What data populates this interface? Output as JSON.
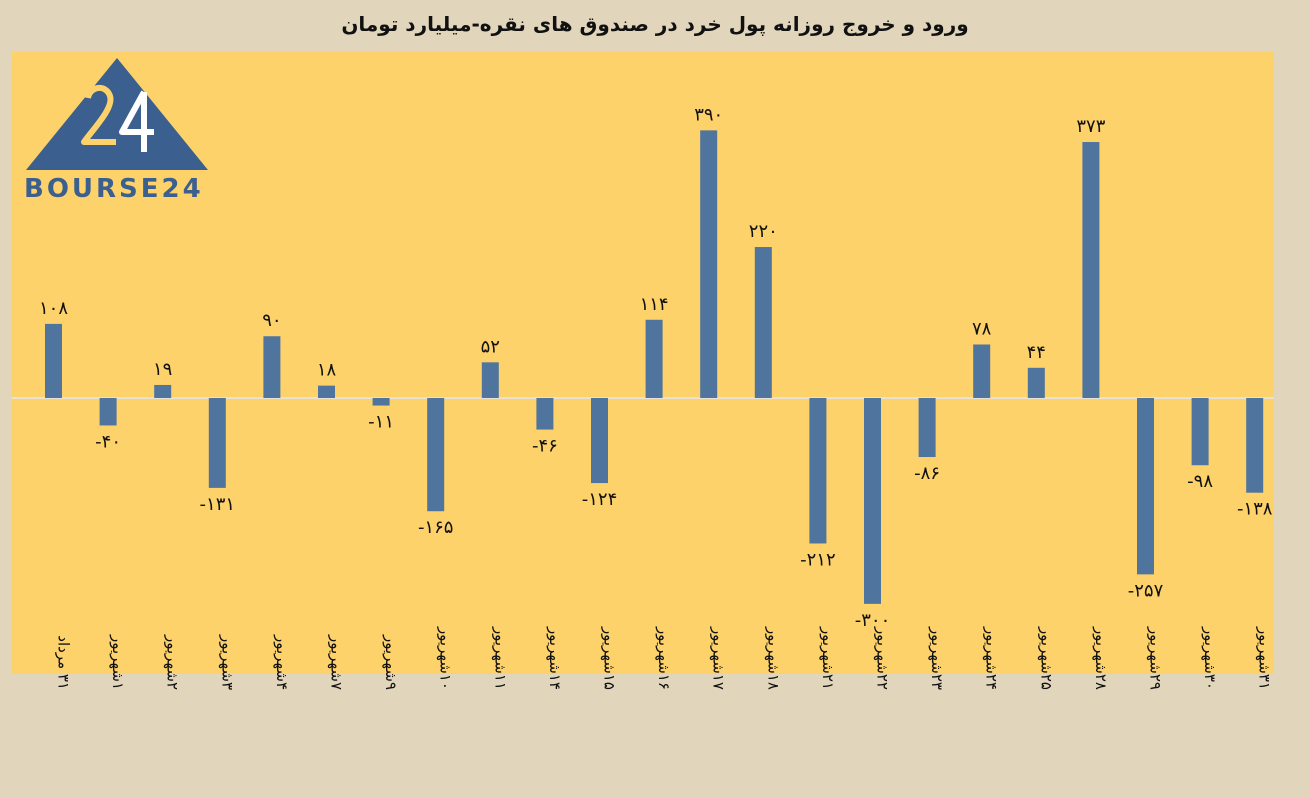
{
  "chart_data": {
    "type": "bar",
    "title": "ورود و خروج روزانه پول خرد در صندوق های نقره-میلیارد تومان",
    "categories": [
      "۳۱ مرداد",
      "۱شهریور",
      "۲شهریور",
      "۳شهریور",
      "۴شهریور",
      "۷شهریور",
      "۹شهریور",
      "۱۰شهریور",
      "۱۱شهریور",
      "۱۴شهریور",
      "۱۵شهریور",
      "۱۶شهریور",
      "۱۷شهریور",
      "۱۸شهریور",
      "۲۱شهریور",
      "۲۲شهریور",
      "۲۳شهریور",
      "۲۴شهریور",
      "۲۵شهریور",
      "۲۸شهریور",
      "۲۹شهریور",
      "۳۰شهریور",
      "۳۱شهریور"
    ],
    "values": [
      108,
      -40,
      19,
      -131,
      90,
      18,
      -11,
      -165,
      52,
      -46,
      -124,
      114,
      390,
      220,
      -212,
      -300,
      -86,
      78,
      44,
      373,
      -257,
      -98,
      -138
    ],
    "value_labels": [
      "۱۰۸",
      "-۴۰",
      "۱۹",
      "-۱۳۱",
      "۹۰",
      "۱۸",
      "-۱۱",
      "-۱۶۵",
      "۵۲",
      "-۴۶",
      "-۱۲۴",
      "۱۱۴",
      "۳۹۰",
      "۲۲۰",
      "-۲۱۲",
      "-۳۰۰",
      "-۸۶",
      "۷۸",
      "۴۴",
      "۳۷۳",
      "-۲۵۷",
      "-۹۸",
      "-۱۳۸"
    ],
    "bar_color": "#4f749e",
    "plot_background": "#fdd26b",
    "page_background": "#e1d5bb",
    "grid": false
  },
  "logo": {
    "text": "BOURSE24",
    "color": "#3b5f8e"
  }
}
